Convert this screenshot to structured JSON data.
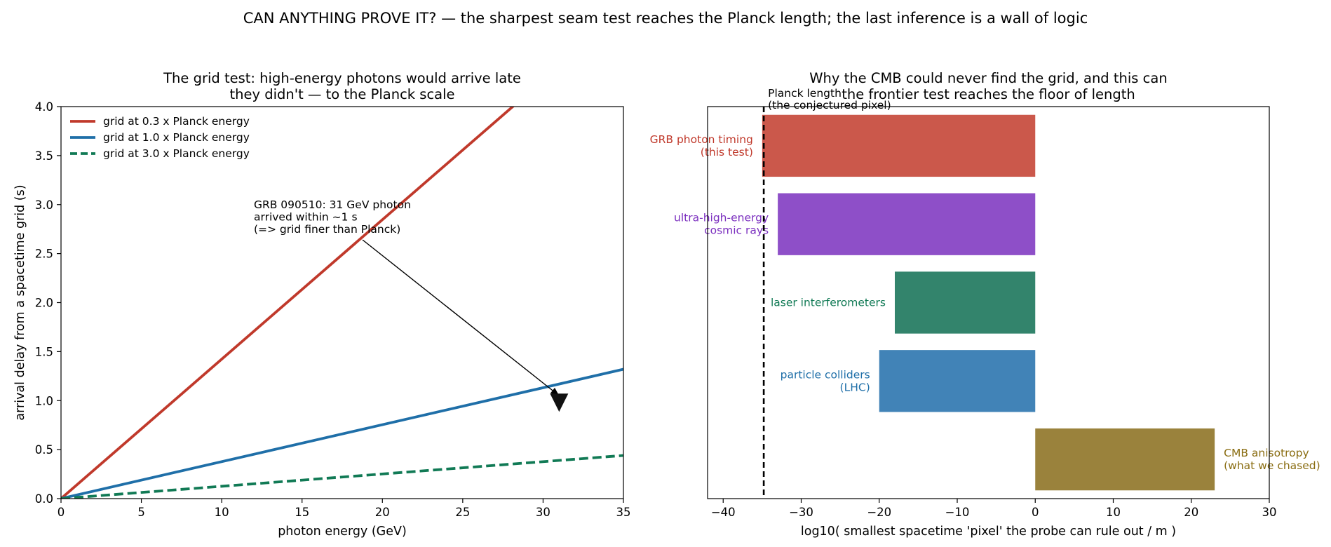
{
  "suptitle": "CAN ANYTHING PROVE IT? — the sharpest seam test reaches the Planck length; the last inference is a wall of logic",
  "chart_data": [
    {
      "type": "line",
      "title_lines": [
        "The grid test: high-energy photons would arrive late",
        "they didn't — to the Planck scale"
      ],
      "xlabel": "photon energy  (GeV)",
      "ylabel": "arrival delay from a spacetime grid  (s)",
      "xlim": [
        0,
        35
      ],
      "ylim": [
        0,
        4
      ],
      "xticks": [
        0,
        5,
        10,
        15,
        20,
        25,
        30,
        35
      ],
      "yticks": [
        0.0,
        0.5,
        1.0,
        1.5,
        2.0,
        2.5,
        3.0,
        3.5,
        4.0
      ],
      "legend_position": "upper-left",
      "series": [
        {
          "name": "grid at 0.3 x Planck energy",
          "x": [
            0,
            35
          ],
          "y": [
            0,
            4.98
          ],
          "color": "#c0392b",
          "dash": "solid"
        },
        {
          "name": "grid at 1.0 x Planck energy",
          "x": [
            0,
            35
          ],
          "y": [
            0,
            1.32
          ],
          "color": "#1f6fa8",
          "dash": "solid"
        },
        {
          "name": "grid at 3.0 x Planck energy",
          "x": [
            0,
            35
          ],
          "y": [
            0,
            0.44
          ],
          "color": "#117a55",
          "dash": "dashed"
        }
      ],
      "observation": {
        "x": 31,
        "y": 1.0,
        "marker": "down-triangle",
        "color": "#111111"
      },
      "annotation": {
        "lines": [
          "GRB 090510: 31 GeV photon",
          "arrived within ~1 s",
          "(=> grid finer than Planck)"
        ],
        "text_x": 12,
        "text_y": 3.0,
        "arrow_x": 31,
        "arrow_y": 1.05
      }
    },
    {
      "type": "bar",
      "orientation": "horizontal",
      "title_lines": [
        "Why the CMB could never find the grid, and this can",
        "the frontier test reaches the floor of length"
      ],
      "xlabel": "log10( smallest spacetime 'pixel' the probe can rule out / m )",
      "xlim": [
        -42,
        30
      ],
      "xticks": [
        -40,
        -30,
        -20,
        -10,
        0,
        10,
        20,
        30
      ],
      "categories": [
        {
          "lines": [
            "GRB photon timing",
            "(this test)"
          ],
          "value": -35,
          "bar_color": "#cb584b",
          "label_color": "#c0392b"
        },
        {
          "lines": [
            "ultra-high-energy",
            "cosmic rays"
          ],
          "value": -33,
          "bar_color": "#8e4fc8",
          "label_color": "#7b2fbf"
        },
        {
          "lines": [
            "laser interferometers"
          ],
          "value": -18,
          "bar_color": "#33846c",
          "label_color": "#117a55"
        },
        {
          "lines": [
            "particle colliders",
            "(LHC)"
          ],
          "value": -20,
          "bar_color": "#4183b7",
          "label_color": "#1f6fa8"
        },
        {
          "lines": [
            "CMB anisotropy",
            "(what we chased)"
          ],
          "value": 23,
          "bar_color": "#9a823c",
          "label_color": "#8a6d12"
        }
      ],
      "reference_line": {
        "x": -34.8,
        "style": "dashed",
        "color": "#000000",
        "lines": [
          "Planck length",
          "(the conjectured pixel)"
        ]
      }
    }
  ]
}
